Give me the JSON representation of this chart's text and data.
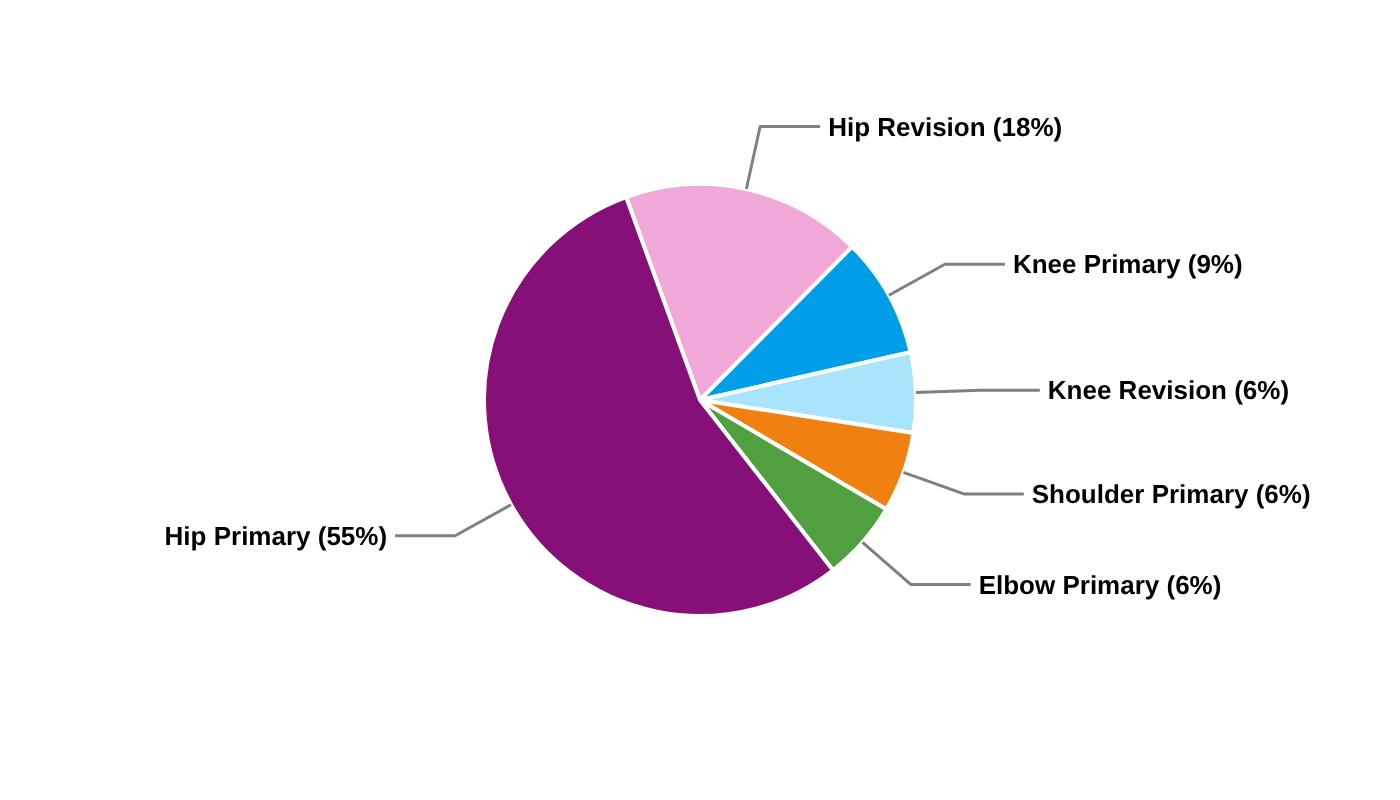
{
  "chart_data": {
    "type": "pie",
    "categories": [
      "Hip Revision (18%)",
      "Knee Primary (9%)",
      "Knee Revision (6%)",
      "Shoulder Primary (6%)",
      "Elbow Primary (6%)",
      "Hip Primary (55%)"
    ],
    "values": [
      18,
      9,
      6,
      6,
      6,
      55
    ],
    "colors": [
      "#f0a8d8",
      "#009ee8",
      "#a8e4fc",
      "#f08010",
      "#50a040",
      "#861078"
    ]
  }
}
